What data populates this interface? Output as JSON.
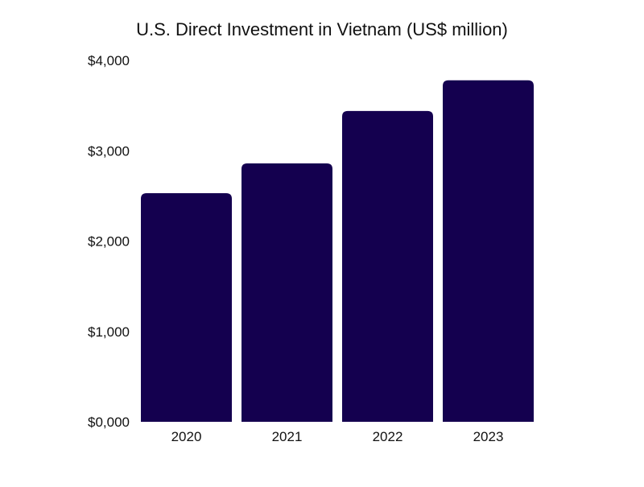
{
  "chart_data": {
    "type": "bar",
    "title": "U.S. Direct Investment in Vietnam (US$ million)",
    "categories": [
      "2020",
      "2021",
      "2022",
      "2023"
    ],
    "values": [
      2530,
      2860,
      3440,
      3780
    ],
    "xlabel": "",
    "ylabel": "",
    "ylim": [
      0,
      4000
    ],
    "yticks": [
      0,
      1000,
      2000,
      3000,
      4000
    ],
    "ytick_labels": [
      "$0,000",
      "$1,000",
      "$2,000",
      "$3,000",
      "$4,000"
    ],
    "grid": false,
    "legend": "none",
    "bar_color": "#14004f"
  }
}
